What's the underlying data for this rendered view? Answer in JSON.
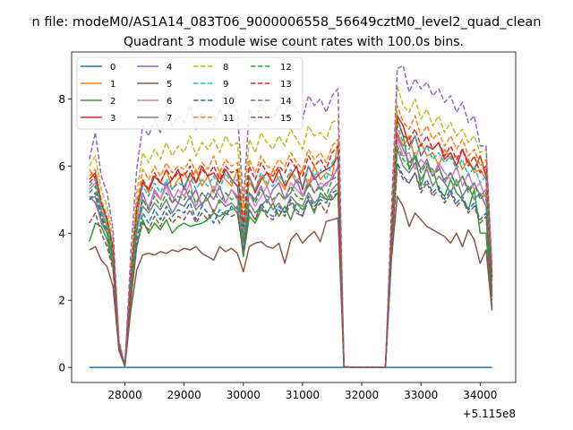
{
  "chart_data": {
    "type": "line",
    "suptitle": "n file: modeM0/AS1A14_083T06_9000006558_56649cztM0_level2_quad_clean",
    "title": "Quadrant 3 module wise count rates with 100.0s bins.",
    "xlabel": "",
    "ylabel": "",
    "offset_text": "+5.115e8",
    "xlim": [
      27100,
      34600
    ],
    "ylim": [
      -0.45,
      9.4
    ],
    "xticks": [
      28000,
      29000,
      30000,
      31000,
      32000,
      33000,
      34000
    ],
    "yticks": [
      0,
      2,
      4,
      6,
      8
    ],
    "x": [
      27400,
      27500,
      27600,
      27700,
      27800,
      27900,
      28000,
      28100,
      28200,
      28300,
      28400,
      28500,
      28600,
      28700,
      28800,
      28900,
      29000,
      29100,
      29200,
      29300,
      29400,
      29500,
      29600,
      29700,
      29800,
      29900,
      30000,
      30100,
      30200,
      30300,
      30400,
      30500,
      30600,
      30700,
      30800,
      30900,
      31000,
      31100,
      31200,
      31300,
      31400,
      31500,
      31600,
      31700,
      31800,
      31900,
      32000,
      32100,
      32200,
      32300,
      32400,
      32500,
      32600,
      32700,
      32800,
      32900,
      33000,
      33100,
      33200,
      33300,
      33400,
      33500,
      33600,
      33700,
      33800,
      33900,
      34000,
      34100,
      34200
    ],
    "series": [
      {
        "name": "0",
        "color": "#1f77b4",
        "dash": "solid",
        "values": [
          0,
          0,
          0,
          0,
          0,
          0,
          0,
          0,
          0,
          0,
          0,
          0,
          0,
          0,
          0,
          0,
          0,
          0,
          0,
          0,
          0,
          0,
          0,
          0,
          0,
          0,
          0,
          0,
          0,
          0,
          0,
          0,
          0,
          0,
          0,
          0,
          0,
          0,
          0,
          0,
          0,
          0,
          0,
          0,
          0,
          0,
          0,
          0,
          0,
          0,
          0,
          0,
          0,
          0,
          0,
          0,
          0,
          0,
          0,
          0,
          0,
          0,
          0,
          0,
          0,
          0,
          0,
          0,
          0
        ]
      },
      {
        "name": "1",
        "color": "#ff7f0e",
        "dash": "solid",
        "values": [
          5.9,
          5.6,
          4.6,
          4.2,
          3.2,
          0.7,
          0.05,
          2.6,
          4.4,
          5.6,
          5.2,
          5.7,
          5.5,
          5.9,
          5.3,
          5.6,
          5.8,
          5.5,
          5.9,
          5.4,
          5.7,
          5.2,
          5.8,
          5.6,
          5.4,
          5.9,
          4.3,
          5.5,
          5.3,
          5.7,
          5.4,
          5.9,
          5.6,
          5.3,
          5.8,
          5.5,
          5.9,
          5.4,
          6.0,
          5.6,
          5.8,
          5.7,
          6.7,
          0.02,
          0.01,
          0,
          0,
          0,
          0,
          0,
          0,
          3.6,
          7.0,
          6.6,
          6.9,
          6.2,
          6.7,
          6.3,
          6.4,
          6.0,
          6.5,
          6.2,
          6.3,
          5.9,
          6.2,
          5.8,
          5.9,
          5.6,
          2.6
        ]
      },
      {
        "name": "2",
        "color": "#2ca02c",
        "dash": "solid",
        "values": [
          3.75,
          4.3,
          4.2,
          3.8,
          3.0,
          0.55,
          0.05,
          2.0,
          3.6,
          4.4,
          4.0,
          4.3,
          4.1,
          4.4,
          4.0,
          4.2,
          4.3,
          4.2,
          4.25,
          4.3,
          4.4,
          4.6,
          4.5,
          4.65,
          4.7,
          4.8,
          3.3,
          4.5,
          4.3,
          4.7,
          4.6,
          4.9,
          4.5,
          4.8,
          4.4,
          4.9,
          4.7,
          5.0,
          4.6,
          5.2,
          5.0,
          5.0,
          5.2,
          0.02,
          0.01,
          0,
          0,
          0,
          0,
          0,
          0,
          3.6,
          7.4,
          6.9,
          5.9,
          6.3,
          5.4,
          6.0,
          5.9,
          5.3,
          5.1,
          5.6,
          5.2,
          5.0,
          4.7,
          5.3,
          4.0,
          4.0,
          1.8
        ]
      },
      {
        "name": "3",
        "color": "#d62728",
        "dash": "solid",
        "values": [
          5.6,
          5.8,
          4.9,
          4.4,
          3.6,
          0.7,
          0.05,
          2.8,
          4.8,
          5.5,
          5.3,
          5.7,
          5.5,
          5.4,
          5.6,
          5.9,
          5.3,
          5.8,
          5.5,
          6.0,
          5.7,
          5.8,
          5.5,
          5.9,
          5.6,
          5.4,
          4.0,
          5.7,
          5.2,
          5.6,
          5.8,
          5.5,
          5.9,
          5.4,
          5.7,
          6.0,
          5.3,
          6.0,
          5.6,
          5.8,
          5.9,
          6.0,
          6.3,
          0.02,
          0.01,
          0,
          0,
          0,
          0,
          0,
          0,
          3.7,
          7.5,
          7.2,
          6.6,
          6.9,
          6.3,
          6.6,
          6.5,
          6.7,
          6.2,
          6.4,
          6.0,
          6.5,
          6.1,
          5.9,
          6.3,
          5.7,
          2.7
        ]
      },
      {
        "name": "4",
        "color": "#9467bd",
        "dash": "solid",
        "values": [
          5.1,
          4.9,
          4.4,
          4.0,
          3.3,
          0.6,
          0.05,
          2.2,
          4.0,
          5.2,
          4.7,
          5.3,
          5.0,
          5.5,
          5.1,
          4.9,
          5.4,
          5.0,
          5.3,
          4.8,
          5.2,
          5.0,
          5.4,
          4.9,
          5.3,
          5.1,
          3.9,
          5.2,
          5.0,
          5.4,
          4.9,
          5.3,
          5.5,
          5.0,
          5.2,
          5.6,
          5.1,
          5.4,
          5.7,
          5.3,
          5.5,
          5.6,
          6.0,
          0.02,
          0.01,
          0,
          0,
          0,
          0,
          0,
          0,
          3.5,
          6.9,
          6.5,
          6.1,
          6.3,
          5.9,
          6.2,
          5.7,
          6.0,
          5.5,
          5.8,
          5.4,
          5.7,
          5.3,
          5.5,
          5.1,
          5.3,
          2.3
        ]
      },
      {
        "name": "5",
        "color": "#8c564b",
        "dash": "solid",
        "values": [
          3.5,
          3.6,
          3.2,
          3.0,
          2.4,
          0.5,
          0.03,
          1.7,
          2.9,
          3.35,
          3.4,
          3.35,
          3.45,
          3.4,
          3.5,
          3.45,
          3.55,
          3.5,
          3.6,
          3.4,
          3.3,
          3.2,
          3.6,
          3.45,
          3.55,
          3.4,
          2.85,
          3.6,
          3.7,
          3.75,
          3.6,
          3.55,
          3.7,
          3.1,
          3.8,
          4.0,
          3.7,
          3.9,
          4.05,
          3.75,
          4.35,
          4.4,
          4.45,
          0.02,
          0.01,
          0,
          0,
          0,
          0,
          0,
          0,
          3.2,
          5.1,
          4.8,
          4.2,
          4.6,
          4.4,
          4.2,
          4.1,
          4.0,
          3.9,
          3.7,
          4.0,
          3.6,
          4.1,
          3.8,
          3.1,
          3.5,
          1.7
        ]
      },
      {
        "name": "6",
        "color": "#e377c2",
        "dash": "solid",
        "values": [
          5.3,
          5.5,
          4.7,
          4.3,
          3.4,
          0.65,
          0.05,
          2.5,
          4.3,
          5.0,
          4.8,
          5.2,
          5.0,
          5.4,
          4.9,
          5.3,
          5.1,
          5.5,
          4.8,
          5.2,
          5.0,
          5.4,
          5.1,
          4.9,
          5.3,
          5.0,
          3.8,
          5.2,
          4.8,
          5.1,
          5.4,
          4.9,
          5.2,
          5.0,
          5.5,
          5.3,
          5.1,
          5.6,
          5.2,
          5.5,
          5.4,
          5.7,
          5.9,
          0.02,
          0.01,
          0,
          0,
          0,
          0,
          0,
          0,
          3.5,
          6.8,
          6.3,
          6.4,
          5.9,
          6.2,
          6.0,
          5.7,
          6.1,
          5.8,
          5.6,
          6.0,
          5.4,
          5.8,
          5.3,
          5.5,
          5.0,
          2.4
        ]
      },
      {
        "name": "7",
        "color": "#7f7f7f",
        "dash": "solid",
        "values": [
          5.0,
          5.1,
          4.3,
          4.0,
          3.2,
          0.6,
          0.05,
          2.3,
          4.1,
          4.8,
          4.6,
          4.9,
          4.7,
          5.0,
          4.6,
          4.9,
          4.8,
          5.1,
          4.7,
          4.9,
          5.0,
          4.6,
          5.0,
          4.8,
          4.9,
          4.7,
          3.7,
          4.9,
          4.6,
          4.8,
          5.0,
          4.7,
          4.9,
          4.6,
          5.1,
          4.9,
          4.8,
          5.2,
          4.9,
          5.1,
          5.0,
          5.3,
          5.5,
          0.02,
          0.01,
          0,
          0,
          0,
          0,
          0,
          0,
          3.4,
          6.5,
          6.0,
          5.8,
          6.1,
          5.6,
          5.9,
          5.4,
          5.7,
          5.5,
          5.2,
          5.6,
          5.1,
          5.4,
          5.0,
          5.2,
          4.8,
          2.2
        ]
      },
      {
        "name": "8",
        "color": "#bcbd22",
        "dash": "dashed",
        "values": [
          6.0,
          6.3,
          5.3,
          4.8,
          3.8,
          0.75,
          0.06,
          3.0,
          5.2,
          6.4,
          6.1,
          6.5,
          6.2,
          6.7,
          6.3,
          6.6,
          6.4,
          6.9,
          6.3,
          6.7,
          6.5,
          6.8,
          6.4,
          6.9,
          6.6,
          6.7,
          4.6,
          6.8,
          6.4,
          7.0,
          6.7,
          6.5,
          6.9,
          6.6,
          7.1,
          6.8,
          6.5,
          7.2,
          6.9,
          7.0,
          6.8,
          7.3,
          7.4,
          0.02,
          0.01,
          0,
          0,
          0,
          0,
          0,
          0,
          4.2,
          8.4,
          7.8,
          7.6,
          8.0,
          7.4,
          7.7,
          7.2,
          7.5,
          7.0,
          7.3,
          6.9,
          7.1,
          6.7,
          6.9,
          6.4,
          6.5,
          3.0
        ]
      },
      {
        "name": "9",
        "color": "#17becf",
        "dash": "dashed",
        "values": [
          5.4,
          5.6,
          4.8,
          4.3,
          3.4,
          0.65,
          0.05,
          2.6,
          4.5,
          5.4,
          5.1,
          5.5,
          5.2,
          5.6,
          5.3,
          5.5,
          5.4,
          5.7,
          5.3,
          5.6,
          5.4,
          5.7,
          5.3,
          5.8,
          5.5,
          5.6,
          4.1,
          5.7,
          5.3,
          5.8,
          5.5,
          5.4,
          5.7,
          5.5,
          5.9,
          5.6,
          5.4,
          6.0,
          5.7,
          5.9,
          5.6,
          6.1,
          6.3,
          0.02,
          0.01,
          0,
          0,
          0,
          0,
          0,
          0,
          3.8,
          7.2,
          6.7,
          6.5,
          6.9,
          6.3,
          6.6,
          6.2,
          6.4,
          6.1,
          6.3,
          5.9,
          6.2,
          5.7,
          6.0,
          5.5,
          5.7,
          2.6
        ]
      },
      {
        "name": "10",
        "color": "#1f77b4",
        "dash": "dashed",
        "values": [
          5.0,
          5.2,
          4.5,
          4.0,
          3.2,
          0.6,
          0.05,
          2.2,
          3.8,
          4.6,
          4.3,
          4.7,
          4.4,
          4.8,
          4.5,
          4.7,
          4.6,
          4.9,
          4.4,
          4.8,
          4.6,
          4.3,
          4.7,
          4.5,
          4.8,
          4.6,
          3.5,
          4.7,
          4.4,
          4.9,
          4.6,
          4.5,
          4.8,
          4.6,
          5.0,
          4.7,
          4.5,
          5.1,
          4.8,
          5.0,
          4.9,
          5.2,
          5.3,
          0.02,
          0.01,
          0,
          0,
          0,
          0,
          0,
          0,
          3.3,
          6.1,
          5.7,
          5.5,
          5.8,
          5.3,
          5.6,
          5.2,
          5.4,
          5.0,
          5.3,
          4.9,
          5.1,
          4.7,
          4.9,
          4.4,
          4.6,
          2.1
        ]
      },
      {
        "name": "11",
        "color": "#ff7f0e",
        "dash": "dashed",
        "values": [
          5.7,
          5.9,
          5.0,
          4.5,
          3.6,
          0.7,
          0.05,
          2.8,
          4.9,
          5.9,
          5.6,
          6.0,
          5.7,
          6.1,
          5.8,
          6.0,
          5.9,
          6.2,
          5.8,
          6.1,
          5.9,
          6.3,
          5.8,
          6.2,
          6.0,
          6.1,
          4.4,
          6.2,
          5.8,
          6.3,
          6.0,
          5.9,
          6.2,
          6.0,
          6.4,
          6.1,
          5.9,
          6.5,
          6.2,
          6.4,
          6.1,
          6.6,
          6.8,
          0.02,
          0.01,
          0,
          0,
          0,
          0,
          0,
          0,
          4.0,
          7.8,
          7.3,
          7.1,
          7.5,
          6.9,
          7.2,
          6.8,
          7.0,
          6.6,
          6.9,
          6.5,
          6.8,
          6.3,
          6.5,
          6.0,
          6.2,
          2.8
        ]
      },
      {
        "name": "12",
        "color": "#2ca02c",
        "dash": "dashed",
        "values": [
          5.2,
          5.4,
          4.6,
          4.1,
          3.3,
          0.62,
          0.05,
          2.4,
          4.2,
          5.0,
          4.7,
          5.1,
          4.8,
          5.2,
          4.9,
          5.1,
          5.0,
          5.3,
          4.9,
          5.2,
          5.0,
          5.3,
          4.9,
          5.2,
          5.0,
          5.1,
          3.8,
          5.2,
          4.9,
          5.3,
          5.1,
          5.0,
          5.2,
          5.0,
          5.4,
          5.1,
          5.0,
          5.5,
          5.2,
          5.4,
          5.1,
          5.6,
          5.7,
          0.02,
          0.01,
          0,
          0,
          0,
          0,
          0,
          0,
          3.6,
          6.6,
          6.2,
          6.0,
          6.4,
          5.8,
          6.1,
          5.7,
          5.9,
          5.6,
          5.8,
          5.4,
          5.7,
          5.2,
          5.5,
          5.0,
          5.2,
          2.4
        ]
      },
      {
        "name": "13",
        "color": "#d62728",
        "dash": "dashed",
        "values": [
          5.5,
          5.7,
          4.9,
          4.4,
          3.5,
          0.68,
          0.05,
          2.7,
          4.7,
          5.6,
          5.3,
          5.8,
          5.5,
          5.9,
          5.6,
          5.8,
          5.7,
          6.0,
          5.5,
          5.9,
          5.7,
          6.0,
          5.6,
          6.0,
          5.8,
          5.9,
          4.2,
          6.0,
          5.6,
          6.1,
          5.8,
          5.7,
          6.0,
          5.8,
          6.2,
          5.9,
          5.7,
          6.3,
          6.0,
          6.2,
          5.9,
          6.4,
          6.6,
          0.02,
          0.01,
          0,
          0,
          0,
          0,
          0,
          0,
          3.9,
          7.4,
          6.9,
          6.8,
          7.1,
          6.6,
          6.9,
          6.5,
          6.7,
          6.3,
          6.6,
          6.2,
          6.5,
          6.0,
          6.3,
          5.8,
          6.0,
          2.7
        ]
      },
      {
        "name": "14",
        "color": "#9467bd",
        "dash": "dashed",
        "values": [
          6.2,
          7.0,
          5.7,
          5.2,
          4.1,
          0.8,
          0.06,
          3.4,
          5.9,
          7.2,
          6.9,
          7.4,
          7.0,
          7.6,
          7.2,
          7.5,
          7.3,
          7.8,
          7.1,
          7.6,
          7.4,
          7.2,
          7.7,
          7.3,
          7.9,
          7.6,
          4.9,
          7.7,
          7.3,
          7.9,
          7.5,
          7.4,
          7.8,
          7.5,
          8.0,
          7.7,
          7.4,
          8.1,
          7.8,
          8.0,
          7.6,
          8.1,
          8.3,
          0.02,
          0.01,
          0,
          0,
          0,
          0,
          0,
          0,
          4.6,
          8.9,
          9.0,
          8.2,
          8.6,
          8.3,
          8.5,
          8.1,
          8.3,
          7.9,
          8.1,
          7.6,
          7.9,
          7.3,
          7.5,
          6.6,
          6.6,
          3.0
        ]
      },
      {
        "name": "15",
        "color": "#8c564b",
        "dash": "dashed",
        "values": [
          4.3,
          4.6,
          4.0,
          3.6,
          2.9,
          0.55,
          0.04,
          2.0,
          3.6,
          4.3,
          4.1,
          4.5,
          4.2,
          4.6,
          4.3,
          4.5,
          4.4,
          4.7,
          4.3,
          4.6,
          4.4,
          4.7,
          4.3,
          4.6,
          4.5,
          4.6,
          3.4,
          4.7,
          4.4,
          4.8,
          4.5,
          4.4,
          4.7,
          4.5,
          4.9,
          4.6,
          4.5,
          5.0,
          4.7,
          4.9,
          4.6,
          5.1,
          5.2,
          0.02,
          0.01,
          0,
          0,
          0,
          0,
          0,
          0,
          3.3,
          6.0,
          5.6,
          5.5,
          5.8,
          5.2,
          5.5,
          5.1,
          5.3,
          4.9,
          5.2,
          4.8,
          5.0,
          4.6,
          4.8,
          4.3,
          4.5,
          2.0
        ]
      }
    ]
  }
}
